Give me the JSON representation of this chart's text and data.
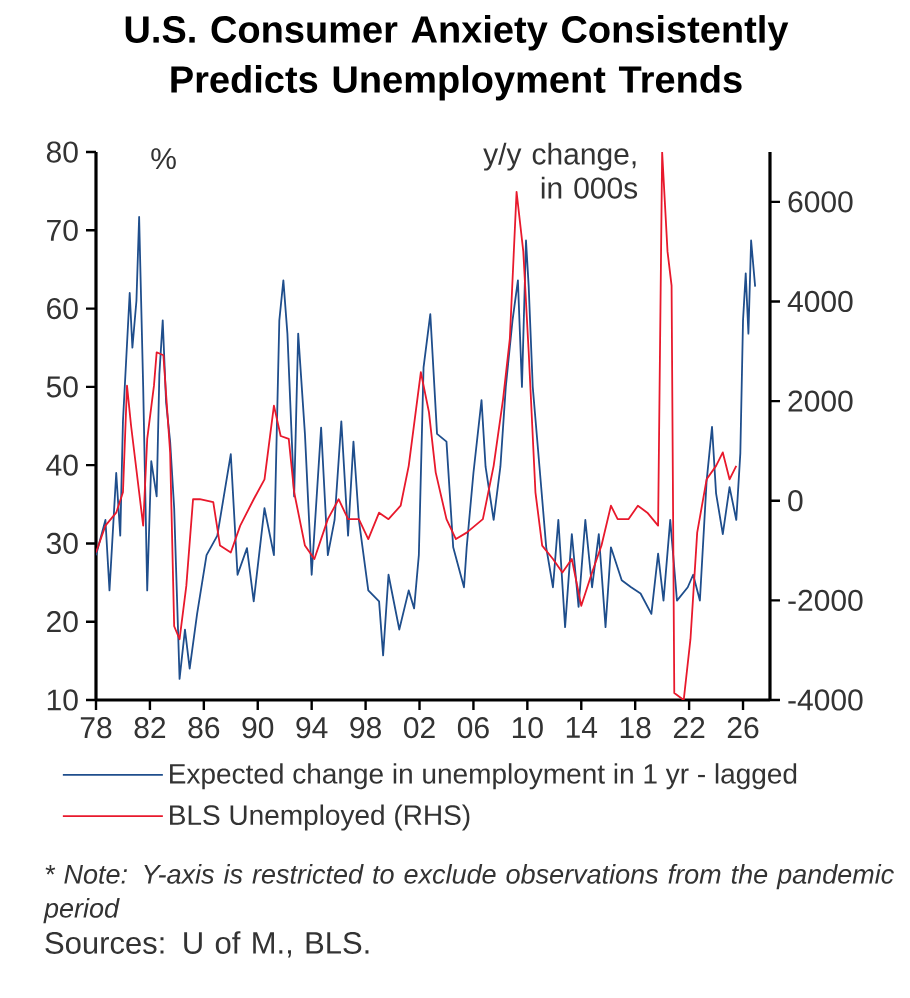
{
  "chart_data": {
    "type": "line",
    "title": "U.S. Consumer Anxiety Consistently Predicts Unemployment Trends",
    "ylabel": "%",
    "y2label": "y/y change, in 000s",
    "xlim": [
      1978,
      2028
    ],
    "xticks": [
      {
        "value": 1978,
        "label": "78"
      },
      {
        "value": 1982,
        "label": "82"
      },
      {
        "value": 1986,
        "label": "86"
      },
      {
        "value": 1990,
        "label": "90"
      },
      {
        "value": 1994,
        "label": "94"
      },
      {
        "value": 1998,
        "label": "98"
      },
      {
        "value": 2002,
        "label": "02"
      },
      {
        "value": 2006,
        "label": "06"
      },
      {
        "value": 2010,
        "label": "10"
      },
      {
        "value": 2014,
        "label": "14"
      },
      {
        "value": 2018,
        "label": "18"
      },
      {
        "value": 2022,
        "label": "22"
      },
      {
        "value": 2026,
        "label": "26"
      }
    ],
    "ylim": [
      10,
      80
    ],
    "yticks": [
      10,
      20,
      30,
      40,
      50,
      60,
      70,
      80
    ],
    "y2lim": [
      -4000,
      7000
    ],
    "y2ticks": [
      -4000,
      -2000,
      0,
      2000,
      4000,
      6000
    ],
    "legend": "bottom",
    "series": [
      {
        "name": "Expected change in unemployment in 1 yr - lagged",
        "color": "#1f4e8c",
        "x": [
          1978.0,
          1978.7,
          1979.0,
          1979.5,
          1979.8,
          1980.0,
          1980.5,
          1980.7,
          1981.0,
          1981.2,
          1981.5,
          1981.8,
          1982.1,
          1982.5,
          1982.7,
          1982.95,
          1983.2,
          1983.5,
          1983.8,
          1984.2,
          1984.6,
          1984.95,
          1985.5,
          1986.2,
          1987.0,
          1988.0,
          1988.5,
          1989.2,
          1989.7,
          1990.5,
          1991.2,
          1991.6,
          1991.9,
          1992.2,
          1992.7,
          1993.0,
          1993.5,
          1994.0,
          1994.7,
          1995.2,
          1995.7,
          1996.2,
          1996.7,
          1997.1,
          1997.5,
          1998.2,
          1999.0,
          1999.3,
          1999.7,
          2000.5,
          2001.2,
          2001.6,
          2001.95,
          2002.3,
          2002.8,
          2003.3,
          2004.0,
          2004.5,
          2005.3,
          2005.5,
          2006.0,
          2006.6,
          2006.9,
          2007.5,
          2008.0,
          2008.4,
          2008.9,
          2009.3,
          2009.6,
          2009.9,
          2010.1,
          2010.4,
          2010.9,
          2011.4,
          2011.9,
          2012.3,
          2012.8,
          2013.3,
          2013.8,
          2014.3,
          2014.8,
          2015.3,
          2015.8,
          2016.2,
          2017.0,
          2017.7,
          2018.4,
          2019.2,
          2019.7,
          2020.1,
          2020.6,
          2021.1,
          2021.9,
          2022.3,
          2022.8,
          2023.3,
          2023.7,
          2024.0,
          2024.5,
          2025.0,
          2025.5,
          2025.8,
          2026.0,
          2026.2,
          2026.4,
          2026.6,
          2026.9
        ],
        "values": [
          28.5,
          33,
          24,
          39,
          31,
          45.6,
          62,
          55,
          61,
          71.7,
          50,
          24,
          40.5,
          36,
          51.6,
          58.5,
          48,
          43,
          34.5,
          12.7,
          19,
          14,
          21,
          28.5,
          31,
          41.4,
          26,
          29.4,
          22.6,
          34.5,
          28.5,
          58.5,
          63.6,
          56.8,
          36,
          56.8,
          44,
          26,
          44.8,
          28.5,
          33,
          45.6,
          31,
          43,
          33,
          24,
          22.6,
          15.7,
          26,
          19,
          24,
          21.7,
          28.5,
          52.5,
          59.3,
          44,
          43,
          29.5,
          24.4,
          29.5,
          39,
          48.3,
          39.8,
          33,
          39.8,
          50,
          58.5,
          63.6,
          50,
          68.7,
          62.8,
          50,
          39.8,
          29.5,
          24.4,
          33,
          19.3,
          31.2,
          21.9,
          33,
          24.4,
          31.2,
          19.3,
          29.5,
          25.3,
          24.4,
          23.6,
          21,
          28.7,
          22.7,
          33,
          22.7,
          24.4,
          26,
          22.7,
          38,
          44.9,
          36.4,
          31.2,
          37.2,
          33,
          41.5,
          58.5,
          64.5,
          56.8,
          68.7,
          62.8
        ]
      },
      {
        "name": "BLS Unemployed (RHS)",
        "color": "#e8192c",
        "axis": "y2",
        "x": [
          1978.0,
          1978.7,
          1979.5,
          1980.0,
          1980.3,
          1980.6,
          1981.2,
          1981.5,
          1981.8,
          1982.3,
          1982.5,
          1983.0,
          1983.5,
          1983.8,
          1984.2,
          1984.7,
          1985.2,
          1985.7,
          1986.7,
          1987.2,
          1988.0,
          1988.7,
          1989.7,
          1990.5,
          1991.2,
          1991.7,
          1992.3,
          1992.7,
          1993.5,
          1994.2,
          1995.2,
          1996.0,
          1996.7,
          1997.5,
          1998.2,
          1999.0,
          1999.7,
          2000.6,
          2001.2,
          2002.1,
          2002.7,
          2003.2,
          2004.0,
          2004.7,
          2005.5,
          2006.7,
          2007.5,
          2008.2,
          2008.7,
          2009.2,
          2009.7,
          2010.1,
          2010.6,
          2011.1,
          2011.9,
          2012.6,
          2013.3,
          2014.0,
          2014.8,
          2015.5,
          2016.2,
          2016.7,
          2017.5,
          2018.2,
          2018.9,
          2019.7,
          2020.0,
          2020.4,
          2020.7,
          2020.9,
          2021.6,
          2022.1,
          2022.6,
          2023.3,
          2024.0,
          2024.5,
          2025.0,
          2025.5
        ],
        "values": [
          -1040,
          -500,
          -240,
          170,
          2310,
          1510,
          170,
          -500,
          1240,
          2310,
          2980,
          2920,
          970,
          -2520,
          -2780,
          -1710,
          30,
          30,
          -30,
          -900,
          -1040,
          -500,
          30,
          430,
          1910,
          1300,
          1240,
          170,
          -900,
          -1170,
          -370,
          30,
          -370,
          -370,
          -770,
          -240,
          -370,
          -100,
          700,
          2580,
          1780,
          570,
          -370,
          -770,
          -640,
          -370,
          700,
          2040,
          3250,
          6200,
          5000,
          2980,
          170,
          -900,
          -1170,
          -1440,
          -1170,
          -2110,
          -1440,
          -900,
          -100,
          -370,
          -370,
          -100,
          -240,
          -500,
          7000,
          5000,
          4320,
          -3860,
          -4000,
          -2780,
          -640,
          430,
          700,
          970,
          430,
          700
        ]
      }
    ],
    "annotations": [
      "* Note: Y-axis is restricted to exclude observations from the pandemic period",
      "Sources: U of M., BLS."
    ]
  }
}
